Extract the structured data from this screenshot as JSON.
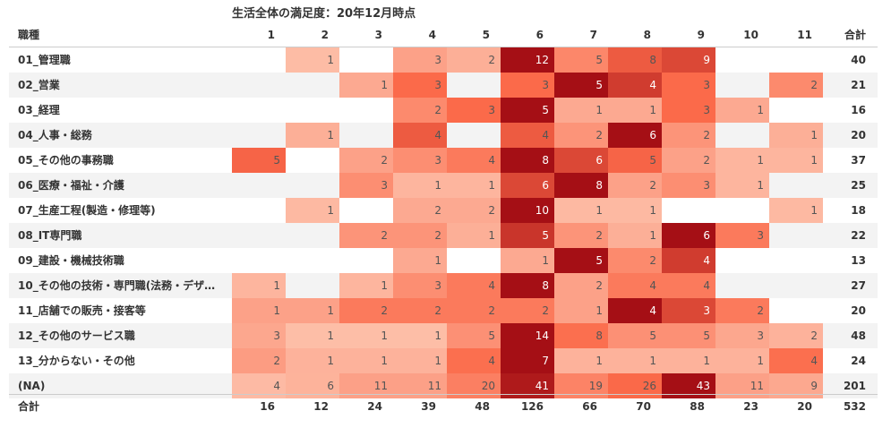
{
  "chart_data": {
    "type": "heatmap",
    "title": "生活全体の満足度：20年12月時点",
    "row_header": "職種",
    "total_label": "合計",
    "columns": [
      "1",
      "2",
      "3",
      "4",
      "5",
      "6",
      "7",
      "8",
      "9",
      "10",
      "11"
    ],
    "rows": [
      {
        "label": "01_管理職",
        "values": [
          null,
          1,
          null,
          3,
          2,
          12,
          5,
          8,
          9,
          null,
          null
        ],
        "total": 40
      },
      {
        "label": "02_営業",
        "values": [
          null,
          null,
          1,
          3,
          null,
          3,
          5,
          4,
          3,
          null,
          2
        ],
        "total": 21
      },
      {
        "label": "03_経理",
        "values": [
          null,
          null,
          null,
          2,
          3,
          5,
          1,
          1,
          3,
          1,
          null
        ],
        "total": 16
      },
      {
        "label": "04_人事・総務",
        "values": [
          null,
          1,
          null,
          4,
          null,
          4,
          2,
          6,
          2,
          null,
          1
        ],
        "total": 20
      },
      {
        "label": "05_その他の事務職",
        "values": [
          5,
          null,
          2,
          3,
          4,
          8,
          6,
          5,
          2,
          1,
          1
        ],
        "total": 37
      },
      {
        "label": "06_医療・福祉・介護",
        "values": [
          null,
          null,
          3,
          1,
          1,
          6,
          8,
          2,
          3,
          1,
          null
        ],
        "total": 25
      },
      {
        "label": "07_生産工程(製造・修理等)",
        "values": [
          null,
          1,
          null,
          2,
          2,
          10,
          1,
          1,
          null,
          null,
          1
        ],
        "total": 18
      },
      {
        "label": "08_IT専門職",
        "values": [
          null,
          null,
          2,
          2,
          1,
          5,
          2,
          1,
          6,
          3,
          null
        ],
        "total": 22
      },
      {
        "label": "09_建設・機械技術職",
        "values": [
          null,
          null,
          null,
          1,
          null,
          1,
          5,
          2,
          4,
          null,
          null
        ],
        "total": 13
      },
      {
        "label": "10_その他の技術・専門職(法務・デザ…",
        "values": [
          1,
          null,
          1,
          3,
          4,
          8,
          2,
          4,
          4,
          null,
          null
        ],
        "total": 27
      },
      {
        "label": "11_店舗での販売・接客等",
        "values": [
          1,
          1,
          2,
          2,
          2,
          2,
          1,
          4,
          3,
          2,
          null
        ],
        "total": 20
      },
      {
        "label": "12_その他のサービス職",
        "values": [
          3,
          1,
          1,
          1,
          5,
          14,
          8,
          5,
          5,
          3,
          2
        ],
        "total": 48
      },
      {
        "label": "13_分からない・その他",
        "values": [
          2,
          1,
          1,
          1,
          4,
          7,
          1,
          1,
          1,
          1,
          4
        ],
        "total": 24
      },
      {
        "label": "(NA)",
        "values": [
          4,
          6,
          11,
          11,
          20,
          41,
          19,
          26,
          43,
          11,
          9
        ],
        "total": 201
      }
    ],
    "column_totals": [
      16,
      12,
      24,
      39,
      48,
      126,
      66,
      70,
      88,
      23,
      20
    ],
    "grand_total": 532,
    "colors": {
      "low": "#fdc9b4",
      "high": "#a50f15",
      "mid": "#fb6a4a"
    }
  }
}
